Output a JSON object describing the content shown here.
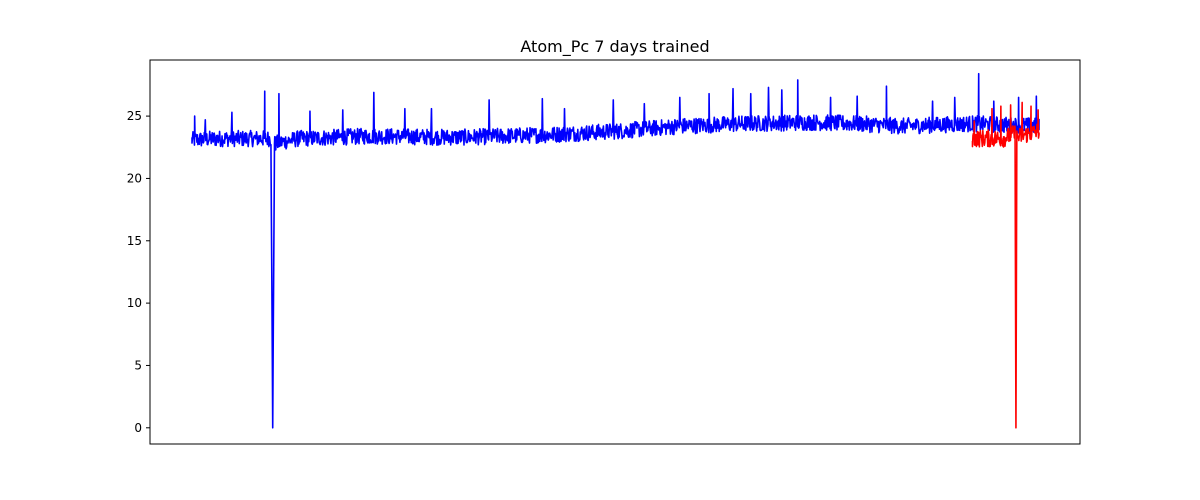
{
  "chart_data": {
    "type": "line",
    "title": "Atom_Pc 7 days trained",
    "xlabel": "",
    "ylabel": "",
    "x_ticks_visible": false,
    "ylim": [
      -1.3,
      29.5
    ],
    "xlim": [
      0,
      100
    ],
    "yticks": [
      0,
      5,
      10,
      15,
      20,
      25
    ],
    "grid": false,
    "legend": "none",
    "series": [
      {
        "color": "#0000ff",
        "x_range": [
          0,
          95.5
        ],
        "baseline": [
          [
            0,
            22.9
          ],
          [
            3,
            23.0
          ],
          [
            8,
            23.0
          ],
          [
            8.9,
            23.0
          ],
          [
            9.1,
            0.0
          ],
          [
            9.3,
            22.6
          ],
          [
            12,
            23.0
          ],
          [
            20,
            23.2
          ],
          [
            30,
            23.1
          ],
          [
            40,
            23.3
          ],
          [
            48,
            23.6
          ],
          [
            55,
            24.0
          ],
          [
            62,
            24.2
          ],
          [
            70,
            24.3
          ],
          [
            75,
            24.2
          ],
          [
            80,
            24.0
          ],
          [
            88,
            24.2
          ],
          [
            95.5,
            24.0
          ]
        ],
        "noise_amplitude": 1.3,
        "spikes": [
          [
            0.3,
            25.0
          ],
          [
            1.5,
            24.7
          ],
          [
            4.5,
            25.3
          ],
          [
            8.2,
            27.0
          ],
          [
            9.8,
            26.8
          ],
          [
            13.3,
            25.4
          ],
          [
            17,
            25.5
          ],
          [
            20.5,
            26.9
          ],
          [
            24,
            25.6
          ],
          [
            27,
            25.6
          ],
          [
            33.5,
            26.3
          ],
          [
            39.5,
            26.4
          ],
          [
            42,
            25.6
          ],
          [
            47.5,
            26.3
          ],
          [
            51,
            26.0
          ],
          [
            55,
            26.5
          ],
          [
            58.3,
            26.8
          ],
          [
            61,
            27.2
          ],
          [
            63,
            26.8
          ],
          [
            65,
            27.3
          ],
          [
            66.5,
            27.1
          ],
          [
            68.3,
            27.9
          ],
          [
            72,
            26.5
          ],
          [
            75,
            26.6
          ],
          [
            78.3,
            27.4
          ],
          [
            83.5,
            26.2
          ],
          [
            86,
            26.5
          ],
          [
            88.7,
            28.4
          ],
          [
            90.4,
            26.2
          ],
          [
            93.2,
            26.5
          ],
          [
            95.2,
            26.6
          ]
        ]
      },
      {
        "color": "#ff0000",
        "x_range": [
          88,
          95.5
        ],
        "baseline": [
          [
            88,
            23.0
          ],
          [
            91.5,
            23.0
          ],
          [
            92.8,
            23.4
          ],
          [
            92.9,
            0.0
          ],
          [
            93.0,
            23.1
          ],
          [
            95.5,
            23.6
          ]
        ],
        "noise_amplitude": 1.4,
        "spikes": [
          [
            88.2,
            24.6
          ],
          [
            90.2,
            25.6
          ],
          [
            91.2,
            25.8
          ],
          [
            92.3,
            25.9
          ],
          [
            93.6,
            26.1
          ],
          [
            94.6,
            25.8
          ],
          [
            95.4,
            25.5
          ]
        ]
      }
    ]
  }
}
